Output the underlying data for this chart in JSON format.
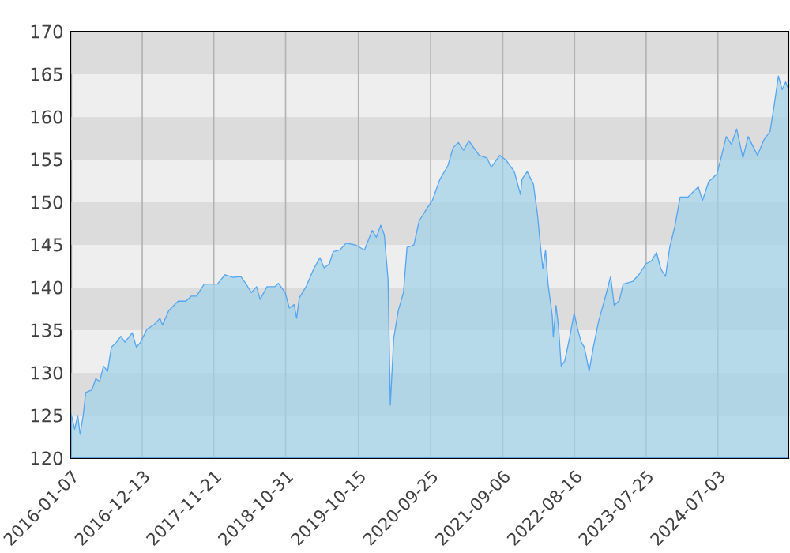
{
  "chart_data": {
    "type": "area",
    "xlim": [
      "2016-01-07",
      "2025-06-06"
    ],
    "ylim": [
      120,
      170
    ],
    "xticks": [
      "2016-01-07",
      "2016-12-13",
      "2017-11-21",
      "2018-10-31",
      "2019-10-15",
      "2020-09-25",
      "2021-09-06",
      "2022-08-16",
      "2023-07-25",
      "2024-07-03"
    ],
    "yticks": [
      120,
      125,
      130,
      135,
      140,
      145,
      150,
      155,
      160,
      165,
      170
    ],
    "grid": "x",
    "bands": [
      {
        "axis": "y",
        "from": 125,
        "to": 130,
        "color": "#dcdcdc"
      },
      {
        "axis": "y",
        "from": 135,
        "to": 140,
        "color": "#dcdcdc"
      },
      {
        "axis": "y",
        "from": 145,
        "to": 150,
        "color": "#dcdcdc"
      },
      {
        "axis": "y",
        "from": 155,
        "to": 160,
        "color": "#dcdcdc"
      },
      {
        "axis": "y",
        "from": 165,
        "to": 170,
        "color": "#dcdcdc"
      }
    ],
    "series": [
      {
        "color": "#55a6f2",
        "x": [
          "2016-01-07",
          "2016-01-24",
          "2016-02-08",
          "2016-02-19",
          "2016-03-05",
          "2016-03-17",
          "2016-04-16",
          "2016-05-04",
          "2016-05-23",
          "2016-06-10",
          "2016-06-30",
          "2016-07-18",
          "2016-08-12",
          "2016-09-01",
          "2016-09-21",
          "2016-10-26",
          "2016-11-15",
          "2016-12-05",
          "2017-01-04",
          "2017-02-10",
          "2017-03-08",
          "2017-03-20",
          "2017-04-19",
          "2017-06-03",
          "2017-07-11",
          "2017-08-05",
          "2017-08-30",
          "2017-10-06",
          "2017-11-13",
          "2017-12-08",
          "2018-01-14",
          "2018-02-21",
          "2018-03-30",
          "2018-04-25",
          "2018-05-20",
          "2018-06-14",
          "2018-07-01",
          "2018-08-03",
          "2018-09-09",
          "2018-09-27",
          "2018-10-29",
          "2018-11-18",
          "2018-12-11",
          "2018-12-23",
          "2019-01-05",
          "2019-02-06",
          "2019-03-15",
          "2019-04-14",
          "2019-05-04",
          "2019-05-29",
          "2019-06-16",
          "2019-07-18",
          "2019-08-17",
          "2019-10-01",
          "2019-11-13",
          "2019-12-20",
          "2020-01-09",
          "2020-01-30",
          "2020-02-16",
          "2020-03-05",
          "2020-03-16",
          "2020-04-01",
          "2020-04-23",
          "2020-05-18",
          "2020-06-04",
          "2020-07-07",
          "2020-08-01",
          "2020-09-08",
          "2020-10-03",
          "2020-11-09",
          "2020-12-17",
          "2021-01-11",
          "2021-02-05",
          "2021-03-02",
          "2021-03-27",
          "2021-05-16",
          "2021-06-22",
          "2021-07-13",
          "2021-08-22",
          "2021-09-23",
          "2021-10-31",
          "2021-11-30",
          "2021-12-07",
          "2022-01-01",
          "2022-01-31",
          "2022-02-20",
          "2022-03-05",
          "2022-03-17",
          "2022-03-30",
          "2022-04-11",
          "2022-05-01",
          "2022-05-06",
          "2022-05-19",
          "2022-05-31",
          "2022-06-13",
          "2022-06-30",
          "2022-07-24",
          "2022-08-14",
          "2022-08-31",
          "2022-09-17",
          "2022-10-02",
          "2022-10-25",
          "2022-11-14",
          "2022-12-09",
          "2023-01-16",
          "2023-02-05",
          "2023-02-22",
          "2023-03-19",
          "2023-04-06",
          "2023-05-21",
          "2023-06-23",
          "2023-07-25",
          "2023-08-19",
          "2023-09-13",
          "2023-10-03",
          "2023-10-26",
          "2023-11-15",
          "2023-12-10",
          "2024-01-04",
          "2024-02-10",
          "2024-03-06",
          "2024-03-31",
          "2024-04-20",
          "2024-05-20",
          "2024-06-28",
          "2024-07-18",
          "2024-08-12",
          "2024-09-06",
          "2024-10-01",
          "2024-10-31",
          "2024-11-25",
          "2025-01-09",
          "2025-02-08",
          "2025-03-10",
          "2025-03-30",
          "2025-04-19",
          "2025-05-07",
          "2025-05-24",
          "2025-06-06"
        ],
        "values": [
          125.2,
          123.4,
          125,
          122.8,
          125,
          127.7,
          128,
          129.3,
          129,
          130.8,
          130.2,
          133,
          133.6,
          134.3,
          133.6,
          134.7,
          133,
          133.6,
          135.1,
          135.7,
          136.4,
          135.6,
          137.3,
          138.4,
          138.4,
          139,
          139,
          140.4,
          140.4,
          140.4,
          141.5,
          141.2,
          141.3,
          140.4,
          139.4,
          140.1,
          138.6,
          140.1,
          140.1,
          140.5,
          139.4,
          137.6,
          138,
          136.4,
          138.8,
          140.1,
          142.2,
          143.5,
          142.3,
          142.8,
          144.2,
          144.4,
          145.2,
          145,
          144.4,
          146.7,
          145.9,
          147.3,
          146.2,
          141,
          126.2,
          134,
          137.3,
          139.4,
          144.7,
          145,
          147.8,
          149.3,
          150.2,
          152.7,
          154.3,
          156.4,
          157,
          156.1,
          157.2,
          155.5,
          155.2,
          154.1,
          155.5,
          154.9,
          153.6,
          150.9,
          152.7,
          153.6,
          152.1,
          148.4,
          145,
          142.2,
          144.4,
          140.4,
          136.7,
          134.2,
          137.9,
          135.4,
          130.8,
          131.4,
          134.2,
          137,
          135.1,
          133.6,
          133,
          130.2,
          133,
          136,
          139.4,
          141.3,
          137.9,
          138.5,
          140.4,
          140.7,
          141.6,
          142.8,
          143.1,
          144.1,
          142.2,
          141.3,
          144.7,
          147.2,
          150.6,
          150.6,
          151.2,
          151.8,
          150.2,
          152.4,
          153.3,
          155.2,
          157.7,
          156.8,
          158.6,
          155.2,
          157.7,
          155.5,
          157.3,
          158.3,
          161.4,
          164.8,
          163.2,
          164.1,
          163.2
        ]
      }
    ]
  }
}
